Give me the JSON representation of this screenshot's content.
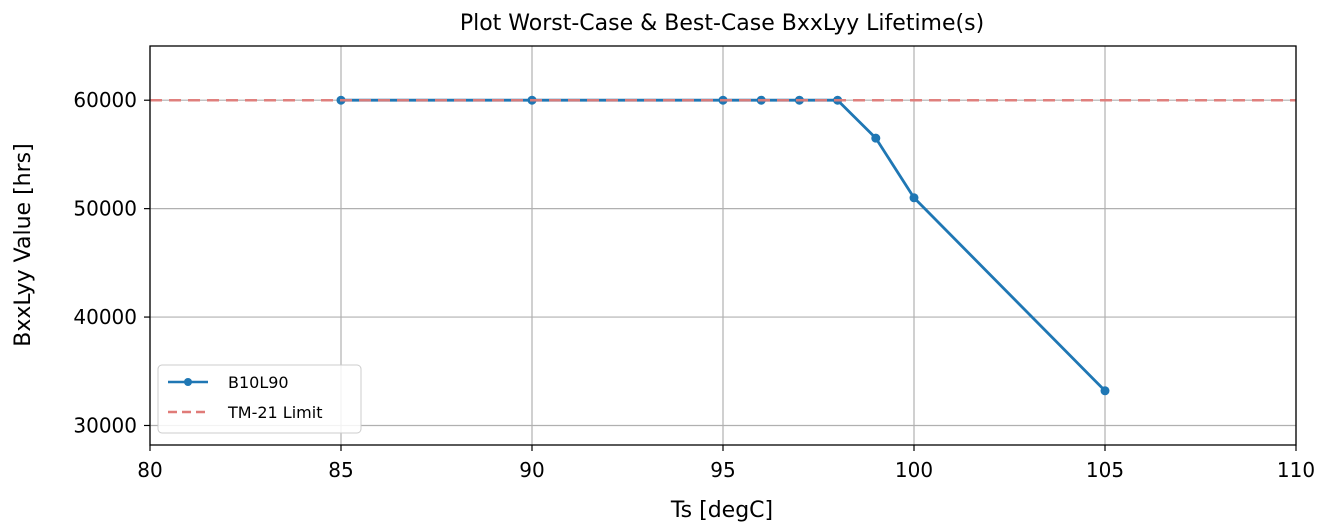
{
  "chart_data": {
    "type": "line",
    "title": "Plot Worst-Case & Best-Case BxxLyy Lifetime(s)",
    "xlabel": "Ts [degC]",
    "ylabel": "BxxLyy Value [hrs]",
    "xlim": [
      80,
      110
    ],
    "ylim": [
      28200,
      65000
    ],
    "xticks": [
      80,
      85,
      90,
      95,
      100,
      105,
      110
    ],
    "yticks": [
      30000,
      40000,
      50000,
      60000
    ],
    "xtick_labels": [
      "80",
      "85",
      "90",
      "95",
      "100",
      "105",
      "110"
    ],
    "ytick_labels": [
      "30000",
      "40000",
      "50000",
      "60000"
    ],
    "grid": true,
    "legend_position": "lower-left",
    "series": [
      {
        "name": "B10L90",
        "style": "line-marker",
        "color": "#1f77b4",
        "x": [
          85,
          90,
          95,
          96,
          97,
          98,
          99,
          100,
          105
        ],
        "y": [
          60000,
          60000,
          60000,
          60000,
          60000,
          60000,
          56500,
          51000,
          33200
        ]
      },
      {
        "name": "TM-21 Limit",
        "style": "dashed",
        "color": "#e07b78",
        "y_constant": 60000
      }
    ]
  }
}
